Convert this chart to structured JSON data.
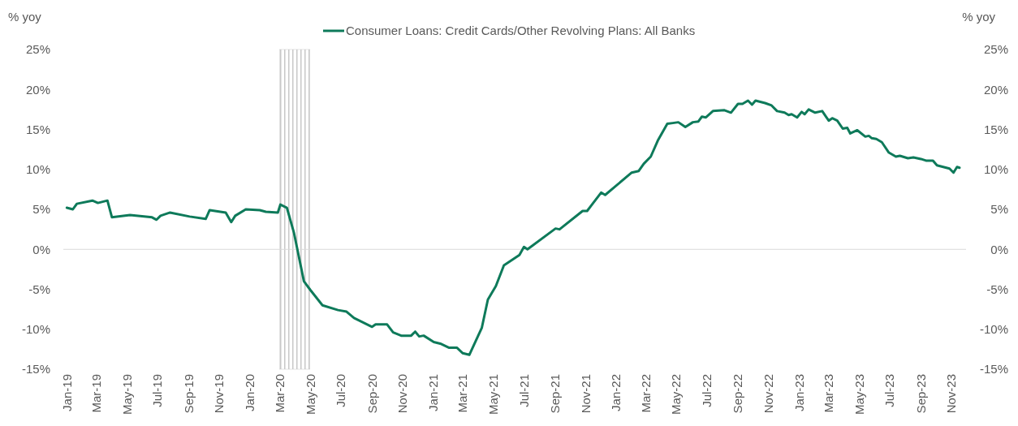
{
  "chart_data": {
    "type": "line",
    "ylabel": "% yoy",
    "y2label": "% yoy",
    "legend": "top",
    "xlim": [
      "2018-12-25",
      "2023-11-30"
    ],
    "xticks": [
      {
        "value": "2019-01-01",
        "label": "Jan-19"
      },
      {
        "value": "2019-03-01",
        "label": "Mar-19"
      },
      {
        "value": "2019-05-01",
        "label": "May-19"
      },
      {
        "value": "2019-07-01",
        "label": "Jul-19"
      },
      {
        "value": "2019-09-01",
        "label": "Sep-19"
      },
      {
        "value": "2019-11-01",
        "label": "Nov-19"
      },
      {
        "value": "2020-01-01",
        "label": "Jan-20"
      },
      {
        "value": "2020-03-01",
        "label": "Mar-20"
      },
      {
        "value": "2020-05-01",
        "label": "May-20"
      },
      {
        "value": "2020-07-01",
        "label": "Jul-20"
      },
      {
        "value": "2020-09-01",
        "label": "Sep-20"
      },
      {
        "value": "2020-11-01",
        "label": "Nov-20"
      },
      {
        "value": "2021-01-01",
        "label": "Jan-21"
      },
      {
        "value": "2021-03-01",
        "label": "Mar-21"
      },
      {
        "value": "2021-05-01",
        "label": "May-21"
      },
      {
        "value": "2021-07-01",
        "label": "Jul-21"
      },
      {
        "value": "2021-09-01",
        "label": "Sep-21"
      },
      {
        "value": "2021-11-01",
        "label": "Nov-21"
      },
      {
        "value": "2022-01-01",
        "label": "Jan-22"
      },
      {
        "value": "2022-03-01",
        "label": "Mar-22"
      },
      {
        "value": "2022-05-01",
        "label": "May-22"
      },
      {
        "value": "2022-07-01",
        "label": "Jul-22"
      },
      {
        "value": "2022-09-01",
        "label": "Sep-22"
      },
      {
        "value": "2022-11-01",
        "label": "Nov-22"
      },
      {
        "value": "2023-01-01",
        "label": "Jan-23"
      },
      {
        "value": "2023-03-01",
        "label": "Mar-23"
      },
      {
        "value": "2023-05-01",
        "label": "May-23"
      },
      {
        "value": "2023-07-01",
        "label": "Jul-23"
      },
      {
        "value": "2023-09-01",
        "label": "Sep-23"
      },
      {
        "value": "2023-11-01",
        "label": "Nov-23"
      }
    ],
    "ylim": [
      -15,
      25
    ],
    "yticks": [
      {
        "value": -15,
        "label": "-15%"
      },
      {
        "value": -10,
        "label": "-10%"
      },
      {
        "value": -5,
        "label": "-5%"
      },
      {
        "value": 0,
        "label": "0%"
      },
      {
        "value": 5,
        "label": "5%"
      },
      {
        "value": 10,
        "label": "10%"
      },
      {
        "value": 15,
        "label": "15%"
      },
      {
        "value": 20,
        "label": "20%"
      },
      {
        "value": 25,
        "label": "25%"
      }
    ],
    "y2lim": [
      -15,
      25
    ],
    "y2ticks": [
      {
        "value": -15,
        "label": "-15%"
      },
      {
        "value": -10,
        "label": "-10%"
      },
      {
        "value": -5,
        "label": "-5%"
      },
      {
        "value": 0,
        "label": "0%"
      },
      {
        "value": 5,
        "label": "5%"
      },
      {
        "value": 10,
        "label": "10%"
      },
      {
        "value": 15,
        "label": "15%"
      },
      {
        "value": 20,
        "label": "20%"
      },
      {
        "value": 25,
        "label": "25%"
      }
    ],
    "bands": [
      {
        "axis": "x",
        "from": "2020-03-01",
        "to": "2020-04-30",
        "color": "#c8c8c8"
      }
    ],
    "x": [
      "2019-01-01",
      "2019-01-13",
      "2019-01-21",
      "2019-02-21",
      "2019-03-04",
      "2019-03-23",
      "2019-04-01",
      "2019-05-07",
      "2019-06-20",
      "2019-06-29",
      "2019-07-07",
      "2019-07-26",
      "2019-09-03",
      "2019-10-05",
      "2019-10-13",
      "2019-11-14",
      "2019-11-25",
      "2019-12-03",
      "2019-12-24",
      "2020-01-21",
      "2020-02-02",
      "2020-02-26",
      "2020-03-02",
      "2020-03-15",
      "2020-03-29",
      "2020-04-18",
      "2020-05-01",
      "2020-05-25",
      "2020-06-25",
      "2020-07-12",
      "2020-07-27",
      "2020-09-01",
      "2020-09-08",
      "2020-10-01",
      "2020-10-13",
      "2020-10-29",
      "2020-11-18",
      "2020-11-26",
      "2020-12-04",
      "2020-12-13",
      "2021-01-02",
      "2021-01-15",
      "2021-02-01",
      "2021-02-17",
      "2021-03-01",
      "2021-03-14",
      "2021-04-08",
      "2021-04-20",
      "2021-05-06",
      "2021-05-22",
      "2021-06-22",
      "2021-07-01",
      "2021-07-08",
      "2021-09-02",
      "2021-09-10",
      "2021-10-26",
      "2021-11-04",
      "2021-12-02",
      "2021-12-10",
      "2022-02-01",
      "2022-02-15",
      "2022-02-25",
      "2022-03-11",
      "2022-03-25",
      "2022-04-13",
      "2022-04-24",
      "2022-05-05",
      "2022-05-19",
      "2022-06-03",
      "2022-06-14",
      "2022-06-21",
      "2022-06-29",
      "2022-07-13",
      "2022-08-05",
      "2022-08-18",
      "2022-09-01",
      "2022-09-10",
      "2022-09-21",
      "2022-09-29",
      "2022-10-06",
      "2022-10-25",
      "2022-11-07",
      "2022-11-18",
      "2022-12-03",
      "2022-12-11",
      "2022-12-17",
      "2022-12-28",
      "2023-01-06",
      "2023-01-12",
      "2023-01-20",
      "2023-02-02",
      "2023-02-16",
      "2023-03-01",
      "2023-03-08",
      "2023-03-18",
      "2023-03-29",
      "2023-04-07",
      "2023-04-13",
      "2023-04-27",
      "2023-05-13",
      "2023-05-20",
      "2023-05-26",
      "2023-06-04",
      "2023-06-15",
      "2023-06-29",
      "2023-07-13",
      "2023-07-21",
      "2023-08-06",
      "2023-08-17",
      "2023-09-01",
      "2023-09-11",
      "2023-09-25",
      "2023-10-03",
      "2023-10-28",
      "2023-11-05",
      "2023-11-12",
      "2023-11-17"
    ],
    "series": [
      {
        "name": "Consumer Loans: Credit Cards/Other Revolving Plans: All Banks",
        "color": "#0e7a5a",
        "values": [
          5.2,
          5.0,
          5.7,
          6.1,
          5.8,
          6.1,
          4.0,
          4.3,
          4.0,
          3.7,
          4.2,
          4.6,
          4.1,
          3.8,
          4.9,
          4.6,
          3.4,
          4.2,
          5.0,
          4.9,
          4.7,
          4.6,
          5.6,
          5.2,
          2.1,
          -4.0,
          -5.1,
          -7.0,
          -7.6,
          -7.8,
          -8.6,
          -9.7,
          -9.4,
          -9.4,
          -10.4,
          -10.8,
          -10.8,
          -10.3,
          -10.9,
          -10.8,
          -11.6,
          -11.8,
          -12.3,
          -12.3,
          -13.0,
          -13.2,
          -9.8,
          -6.3,
          -4.6,
          -2.0,
          -0.7,
          0.3,
          0.0,
          2.6,
          2.5,
          4.8,
          4.8,
          7.1,
          6.8,
          9.6,
          9.8,
          10.7,
          11.6,
          13.6,
          15.7,
          15.8,
          15.9,
          15.3,
          15.9,
          16.0,
          16.6,
          16.5,
          17.3,
          17.4,
          17.1,
          18.2,
          18.2,
          18.6,
          18.1,
          18.6,
          18.3,
          18.0,
          17.3,
          17.1,
          16.8,
          16.9,
          16.5,
          17.2,
          16.9,
          17.5,
          17.1,
          17.3,
          16.1,
          16.4,
          16.1,
          15.1,
          15.2,
          14.5,
          14.9,
          14.1,
          14.2,
          13.9,
          13.8,
          13.4,
          12.1,
          11.6,
          11.7,
          11.4,
          11.5,
          11.3,
          11.1,
          11.1,
          10.5,
          10.1,
          9.6,
          10.3,
          10.2
        ]
      }
    ]
  }
}
